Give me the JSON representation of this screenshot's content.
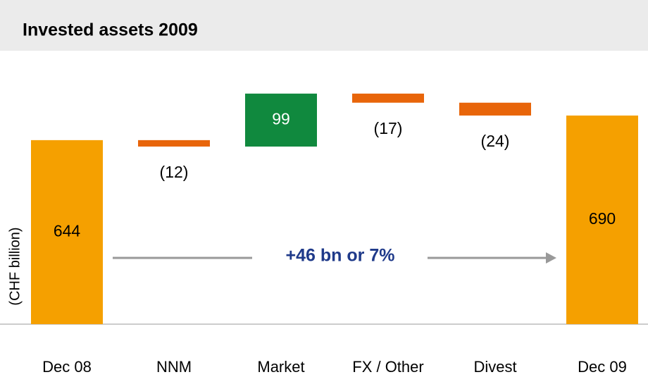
{
  "chart_data": {
    "type": "waterfall",
    "title": "Invested assets 2009",
    "y_label": "(CHF billion)",
    "categories": [
      "Dec 08",
      "NNM",
      "Market",
      "FX / Other",
      "Divest",
      "Dec 09"
    ],
    "values": [
      644,
      -12,
      99,
      -17,
      -24,
      690
    ],
    "value_labels": [
      "644",
      "(12)",
      "99",
      "(17)",
      "(24)",
      "690"
    ],
    "colors": [
      "#f5a000",
      "#e8650a",
      "#10893e",
      "#e8650a",
      "#e8650a",
      "#f5a000"
    ],
    "ylim": [
      300,
      740
    ],
    "annotation": "+46 bn or 7%"
  }
}
